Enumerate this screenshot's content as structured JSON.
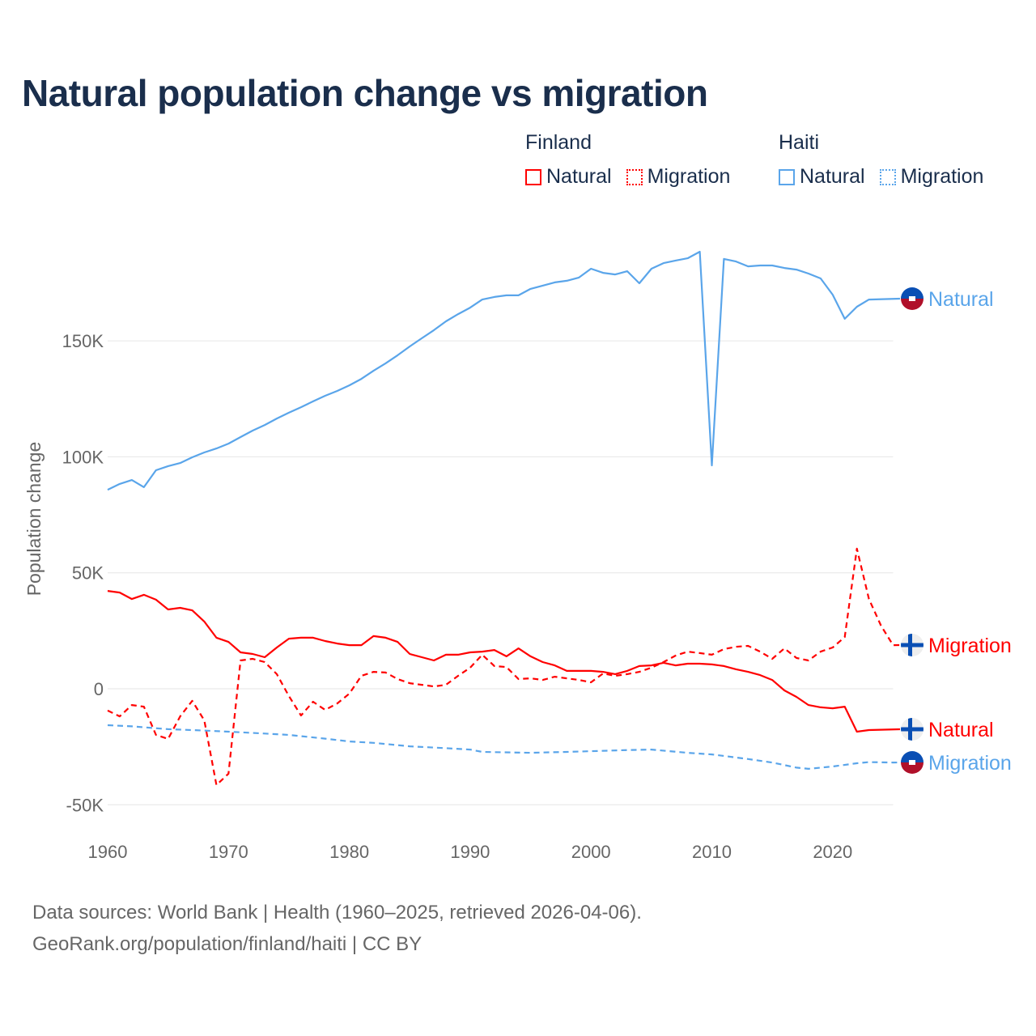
{
  "title": "Natural population change vs migration",
  "legend": {
    "groups": [
      {
        "name": "Finland",
        "color": "#ff0000",
        "items": [
          "Natural",
          "Migration"
        ]
      },
      {
        "name": "Haiti",
        "color": "#5aa5ea",
        "items": [
          "Natural",
          "Migration"
        ]
      }
    ]
  },
  "source": {
    "line1": "Data sources: World Bank | Health (1960–2025, retrieved 2026-04-06).",
    "line2": "GeoRank.org/population/finland/haiti | CC BY"
  },
  "chart_data": {
    "type": "line",
    "title": "Natural population change vs migration",
    "xlabel": "",
    "ylabel": "Population change",
    "xlim": [
      1960,
      2025
    ],
    "ylim": [
      -55000,
      200000
    ],
    "xticks": [
      1960,
      1970,
      1980,
      1990,
      2000,
      2010,
      2020
    ],
    "xtick_labels": [
      "1960",
      "1970",
      "1980",
      "1990",
      "2000",
      "2010",
      "2020"
    ],
    "yticks": [
      -50000,
      0,
      50000,
      100000,
      150000
    ],
    "ytick_labels": [
      "-50K",
      "0",
      "50K",
      "100K",
      "150K"
    ],
    "grid": true,
    "legend_position": "top-right",
    "series": [
      {
        "name": "Haiti Natural",
        "country": "Haiti",
        "label": "Natural",
        "color": "#5aa5ea",
        "dash": false,
        "flag": "haiti",
        "x": [
          1960,
          1961,
          1962,
          1963,
          1964,
          1965,
          1966,
          1967,
          1968,
          1969,
          1970,
          1971,
          1972,
          1973,
          1974,
          1975,
          1976,
          1977,
          1978,
          1979,
          1980,
          1981,
          1982,
          1983,
          1984,
          1985,
          1986,
          1987,
          1988,
          1989,
          1990,
          1991,
          1992,
          1993,
          1994,
          1995,
          1996,
          1997,
          1998,
          1999,
          2000,
          2001,
          2002,
          2003,
          2004,
          2005,
          2006,
          2007,
          2008,
          2009,
          2010,
          2011,
          2012,
          2013,
          2014,
          2015,
          2016,
          2017,
          2018,
          2019,
          2020,
          2021,
          2022,
          2023
        ],
        "y": [
          85800,
          88300,
          90000,
          86900,
          94200,
          96000,
          97300,
          99800,
          101900,
          103600,
          105700,
          108500,
          111300,
          113700,
          116500,
          119000,
          121400,
          123900,
          126300,
          128400,
          130800,
          133600,
          137100,
          140300,
          143800,
          147600,
          151100,
          154600,
          158400,
          161500,
          164300,
          167800,
          168900,
          169600,
          169600,
          172400,
          173800,
          175200,
          175900,
          177300,
          181100,
          179300,
          178600,
          180000,
          174800,
          181100,
          183500,
          184600,
          185600,
          188400,
          96300,
          185300,
          184200,
          182100,
          182500,
          182500,
          181400,
          180700,
          179000,
          176900,
          169900,
          159500,
          164700,
          167800
        ]
      },
      {
        "name": "Finland Migration",
        "country": "Finland",
        "label": "Migration",
        "color": "#ff0000",
        "dash": true,
        "flag": "finland",
        "x": [
          1960,
          1961,
          1962,
          1963,
          1964,
          1965,
          1966,
          1967,
          1968,
          1969,
          1970,
          1971,
          1972,
          1973,
          1974,
          1975,
          1976,
          1977,
          1978,
          1979,
          1980,
          1981,
          1982,
          1983,
          1984,
          1985,
          1986,
          1987,
          1988,
          1989,
          1990,
          1991,
          1992,
          1993,
          1994,
          1995,
          1996,
          1997,
          1998,
          1999,
          2000,
          2001,
          2002,
          2003,
          2004,
          2005,
          2006,
          2007,
          2008,
          2009,
          2010,
          2011,
          2012,
          2013,
          2014,
          2015,
          2016,
          2017,
          2018,
          2019,
          2020,
          2021,
          2022,
          2023,
          2024,
          2025
        ],
        "y": [
          -9400,
          -11900,
          -7000,
          -7700,
          -19900,
          -21600,
          -11900,
          -5200,
          -13600,
          -41500,
          -36600,
          12200,
          12900,
          11500,
          6300,
          -3100,
          -11500,
          -5600,
          -9100,
          -6300,
          -2100,
          5600,
          7300,
          7000,
          4200,
          2400,
          1700,
          1000,
          1700,
          5600,
          9100,
          14700,
          9800,
          9400,
          4200,
          4500,
          3800,
          5200,
          4500,
          3800,
          2800,
          6600,
          5600,
          6300,
          7300,
          9100,
          11500,
          14300,
          16000,
          15400,
          14700,
          17100,
          18100,
          18500,
          16000,
          12900,
          17400,
          13300,
          12200,
          16000,
          17800,
          22300,
          60400,
          38700,
          27200,
          18800
        ]
      },
      {
        "name": "Finland Natural",
        "country": "Finland",
        "label": "Natural",
        "color": "#ff0000",
        "dash": false,
        "flag": "finland",
        "x": [
          1960,
          1961,
          1962,
          1963,
          1964,
          1965,
          1966,
          1967,
          1968,
          1969,
          1970,
          1971,
          1972,
          1973,
          1974,
          1975,
          1976,
          1977,
          1978,
          1979,
          1980,
          1981,
          1982,
          1983,
          1984,
          1985,
          1986,
          1987,
          1988,
          1989,
          1990,
          1991,
          1992,
          1993,
          1994,
          1995,
          1996,
          1997,
          1998,
          1999,
          2000,
          2001,
          2002,
          2003,
          2004,
          2005,
          2006,
          2007,
          2008,
          2009,
          2010,
          2011,
          2012,
          2013,
          2014,
          2015,
          2016,
          2017,
          2018,
          2019,
          2020,
          2021,
          2022,
          2023
        ],
        "y": [
          42200,
          41500,
          38700,
          40500,
          38400,
          34200,
          34900,
          33800,
          29000,
          22000,
          20200,
          15700,
          15000,
          13600,
          17800,
          21600,
          22000,
          22000,
          20600,
          19500,
          18800,
          18800,
          22700,
          22000,
          20200,
          15000,
          13600,
          12200,
          14700,
          14700,
          15700,
          16000,
          16700,
          14000,
          17400,
          14000,
          11500,
          10100,
          7700,
          7700,
          7700,
          7300,
          6300,
          7700,
          9800,
          10100,
          11200,
          10100,
          10800,
          10800,
          10500,
          9800,
          8400,
          7300,
          5900,
          3800,
          -700,
          -3500,
          -7000,
          -8000,
          -8400,
          -7700,
          -18500,
          -17800
        ]
      },
      {
        "name": "Haiti Migration",
        "country": "Haiti",
        "label": "Migration",
        "color": "#5aa5ea",
        "dash": true,
        "flag": "haiti",
        "x": [
          1960,
          1962,
          1965,
          1968,
          1970,
          1973,
          1975,
          1978,
          1980,
          1982,
          1985,
          1988,
          1990,
          1991,
          1995,
          1998,
          2000,
          2003,
          2005,
          2008,
          2010,
          2013,
          2015,
          2017,
          2018,
          2020,
          2022,
          2023,
          2025
        ],
        "y": [
          -15700,
          -16200,
          -17400,
          -18000,
          -18500,
          -19300,
          -19900,
          -21500,
          -22700,
          -23300,
          -24800,
          -25600,
          -26200,
          -27200,
          -27600,
          -27200,
          -26900,
          -26400,
          -26200,
          -27600,
          -28300,
          -30300,
          -31800,
          -34000,
          -34500,
          -33500,
          -32100,
          -31600,
          -31800
        ]
      }
    ]
  }
}
